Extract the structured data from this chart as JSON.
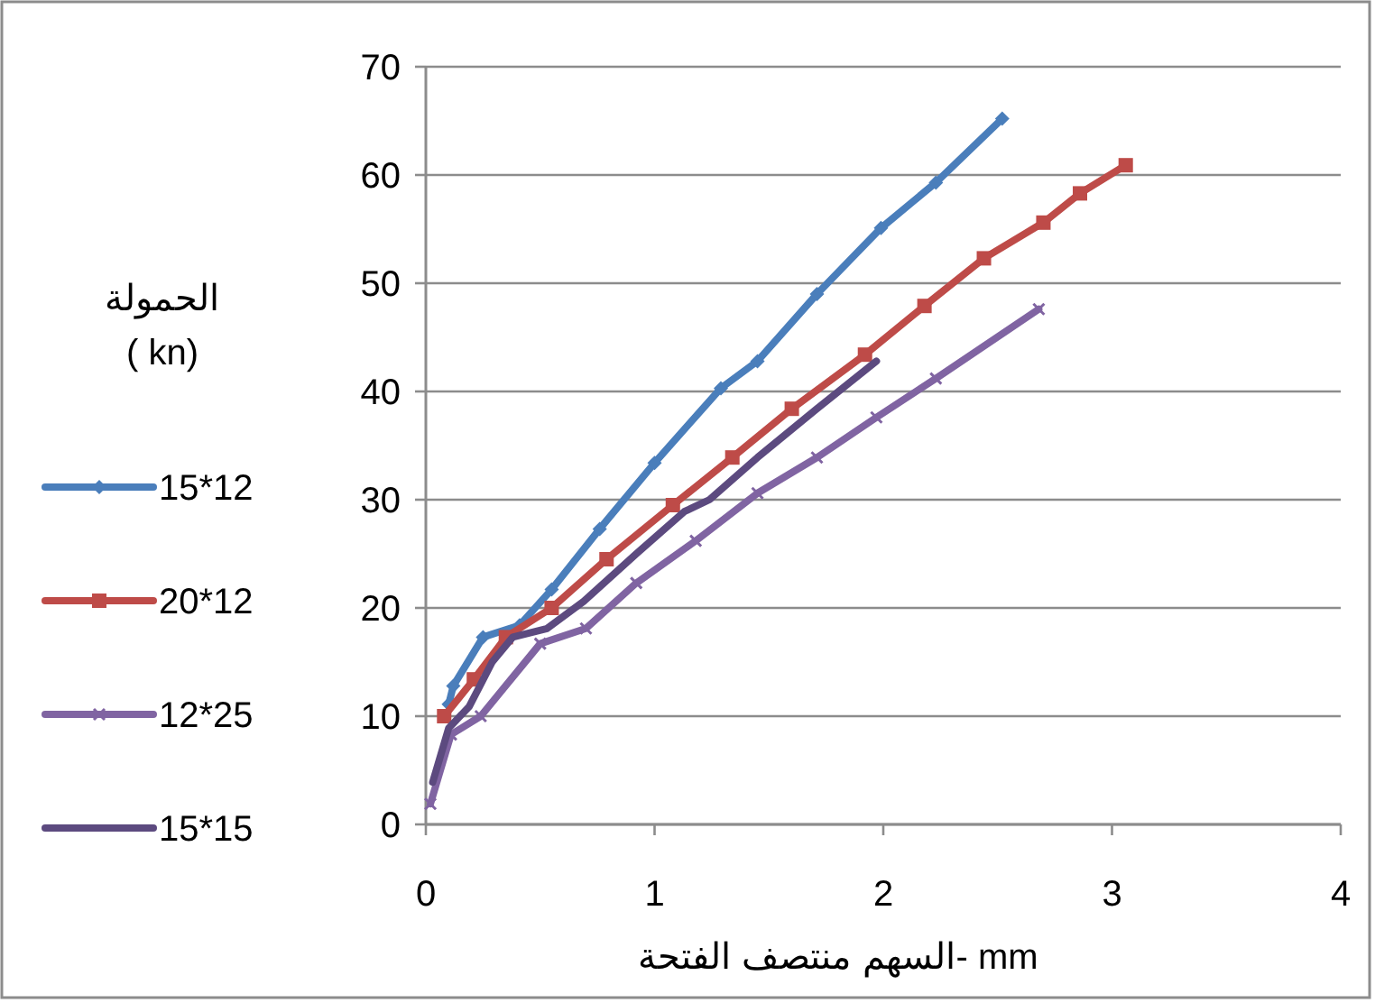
{
  "chart_data": {
    "type": "line",
    "xlabel": "السهم منتصف الفتحة- mm",
    "legend_title": "الحمولة\n( kn)",
    "xlim": [
      0,
      4
    ],
    "xticks": [
      0,
      1,
      2,
      3,
      4
    ],
    "ylim": [
      0,
      70
    ],
    "yticks": [
      0,
      10,
      20,
      30,
      40,
      50,
      60,
      70
    ],
    "grid": "y",
    "legend": "left",
    "line_style": "solid",
    "series": [
      {
        "name": "15*12",
        "color": "#4a7ebb",
        "marker": "diamond",
        "x": [
          0.1,
          0.12,
          0.25,
          0.41,
          0.55,
          0.76,
          1.0,
          1.29,
          1.45,
          1.71,
          1.99,
          2.23,
          2.52
        ],
        "values": [
          11.1,
          12.8,
          17.3,
          18.4,
          21.7,
          27.3,
          33.4,
          40.3,
          42.8,
          49,
          55.1,
          59.3,
          65.2
        ]
      },
      {
        "name": "20*12",
        "color": "#be4b48",
        "marker": "square",
        "x": [
          0.08,
          0.21,
          0.35,
          0.55,
          0.79,
          1.08,
          1.34,
          1.6,
          1.92,
          2.18,
          2.44,
          2.7,
          2.86,
          3.06
        ],
        "values": [
          10,
          13.4,
          17.3,
          20,
          24.5,
          29.5,
          33.9,
          38.4,
          43.4,
          47.9,
          52.3,
          55.6,
          58.3,
          60.9
        ]
      },
      {
        "name": "12*25",
        "color": "#8064a2",
        "marker": "cross",
        "x": [
          0.02,
          0.11,
          0.24,
          0.5,
          0.7,
          0.92,
          1.18,
          1.45,
          1.71,
          1.97,
          2.23,
          2.68
        ],
        "values": [
          1.9,
          8.3,
          10,
          16.7,
          18.1,
          22.3,
          26.2,
          30.6,
          33.9,
          37.6,
          41.2,
          47.6
        ]
      },
      {
        "name": "15*15",
        "color": "#5c4a7f",
        "marker": "none",
        "x": [
          0.03,
          0.1,
          0.19,
          0.29,
          0.38,
          0.53,
          0.69,
          0.92,
          1.13,
          1.24,
          1.45,
          1.71,
          1.97
        ],
        "values": [
          3.9,
          8.9,
          10.9,
          15,
          17.3,
          18.1,
          20.6,
          25,
          28.9,
          30,
          33.9,
          38.4,
          42.8
        ]
      }
    ]
  }
}
